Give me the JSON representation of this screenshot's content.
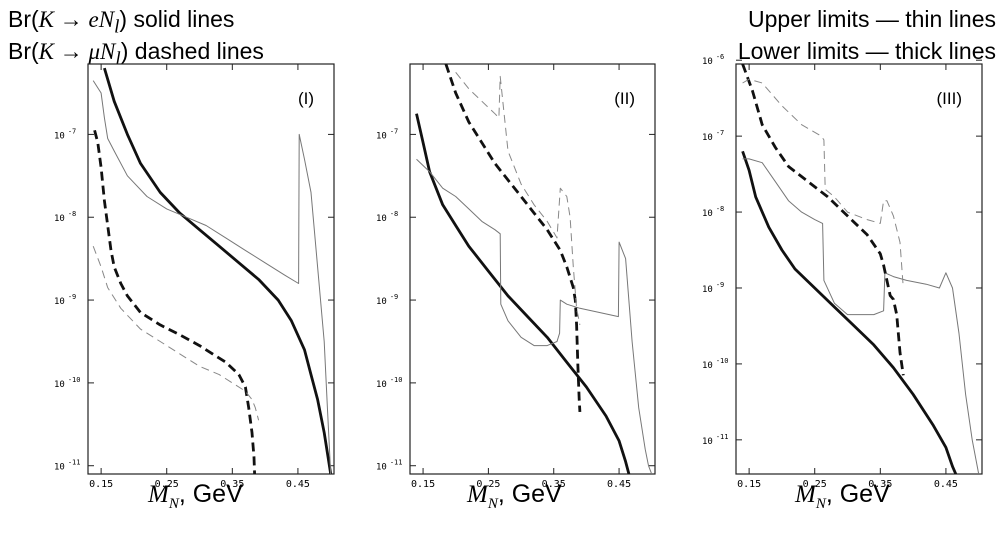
{
  "legend": {
    "left_line1_prefix": "Br(",
    "left_line1_math": "K → eN",
    "left_line1_sub": "l",
    "left_line1_suffix": ") solid lines",
    "left_line2_prefix": "Br(",
    "left_line2_math": "K → μN",
    "left_line2_sub": "l",
    "left_line2_suffix": ") dashed lines",
    "right_line1": "Upper limits — thin lines",
    "right_line2": "Lower limits — thick lines"
  },
  "xlabel": {
    "symbol": "M",
    "sub": "N",
    "unit": ", GeV"
  },
  "chart_data": [
    {
      "type": "line",
      "panel_label": "(I)",
      "xlim": [
        0.13,
        0.505
      ],
      "ylim": [
        -11.1,
        -6.15
      ],
      "yscale": "log",
      "xticks": [
        0.15,
        0.25,
        0.35,
        0.45
      ],
      "xtick_labels": [
        "0.15",
        "0.25",
        "0.35",
        "0.45"
      ],
      "yticks": [
        -7,
        -8,
        -9,
        -10,
        -11
      ],
      "ytick_labels": [
        "10 -7",
        "10 -8",
        "10 -9",
        "10 -10",
        "10 -11"
      ],
      "series": [
        {
          "style": "solid-thick",
          "x": [
            0.155,
            0.17,
            0.19,
            0.21,
            0.24,
            0.27,
            0.3,
            0.33,
            0.36,
            0.39,
            0.42,
            0.44,
            0.46,
            0.47,
            0.48,
            0.49,
            0.496,
            0.5
          ],
          "y": [
            -6.2,
            -6.6,
            -7.0,
            -7.35,
            -7.7,
            -7.95,
            -8.15,
            -8.35,
            -8.55,
            -8.75,
            -9.0,
            -9.25,
            -9.6,
            -9.9,
            -10.2,
            -10.6,
            -10.9,
            -11.1
          ]
        },
        {
          "style": "solid-thin",
          "x": [
            0.138,
            0.15,
            0.155,
            0.16,
            0.17,
            0.19,
            0.22,
            0.25,
            0.28,
            0.31,
            0.34,
            0.37,
            0.4,
            0.43,
            0.451,
            0.452,
            0.46,
            0.47,
            0.48,
            0.49,
            0.495,
            0.5
          ],
          "y": [
            -6.35,
            -6.5,
            -6.8,
            -7.05,
            -7.2,
            -7.5,
            -7.75,
            -7.9,
            -8.0,
            -8.1,
            -8.25,
            -8.4,
            -8.55,
            -8.7,
            -8.8,
            -7.0,
            -7.3,
            -7.7,
            -8.6,
            -9.5,
            -10.3,
            -11.1
          ]
        },
        {
          "style": "dashed-thick",
          "x": [
            0.14,
            0.145,
            0.15,
            0.155,
            0.16,
            0.165,
            0.17,
            0.18,
            0.19,
            0.21,
            0.24,
            0.27,
            0.3,
            0.32,
            0.34,
            0.36,
            0.37,
            0.375,
            0.38,
            0.383,
            0.384
          ],
          "y": [
            -6.95,
            -7.1,
            -7.4,
            -7.8,
            -8.1,
            -8.4,
            -8.6,
            -8.8,
            -8.95,
            -9.15,
            -9.3,
            -9.42,
            -9.55,
            -9.65,
            -9.75,
            -9.9,
            -10.05,
            -10.3,
            -10.6,
            -10.9,
            -11.1
          ]
        },
        {
          "style": "dashed-thin",
          "x": [
            0.138,
            0.15,
            0.16,
            0.18,
            0.21,
            0.24,
            0.27,
            0.3,
            0.33,
            0.35,
            0.37,
            0.38,
            0.385,
            0.39
          ],
          "y": [
            -8.35,
            -8.6,
            -8.85,
            -9.1,
            -9.35,
            -9.5,
            -9.65,
            -9.8,
            -9.9,
            -10.0,
            -10.1,
            -10.2,
            -10.3,
            -10.45
          ]
        }
      ]
    },
    {
      "type": "line",
      "panel_label": "(II)",
      "xlim": [
        0.13,
        0.505
      ],
      "ylim": [
        -11.1,
        -6.15
      ],
      "yscale": "log",
      "xticks": [
        0.15,
        0.25,
        0.35,
        0.45
      ],
      "xtick_labels": [
        "0.15",
        "0.25",
        "0.35",
        "0.45"
      ],
      "yticks": [
        -7,
        -8,
        -9,
        -10,
        -11
      ],
      "ytick_labels": [
        "10 -7",
        "10 -8",
        "10 -9",
        "10 -10",
        "10 -11"
      ],
      "series": [
        {
          "style": "solid-thick",
          "x": [
            0.14,
            0.15,
            0.16,
            0.18,
            0.2,
            0.22,
            0.25,
            0.28,
            0.31,
            0.34,
            0.37,
            0.4,
            0.43,
            0.45,
            0.46,
            0.465
          ],
          "y": [
            -6.75,
            -7.1,
            -7.45,
            -7.85,
            -8.1,
            -8.35,
            -8.65,
            -8.95,
            -9.2,
            -9.45,
            -9.75,
            -10.05,
            -10.4,
            -10.7,
            -10.95,
            -11.1
          ]
        },
        {
          "style": "solid-thin",
          "x": [
            0.14,
            0.16,
            0.18,
            0.2,
            0.22,
            0.24,
            0.26,
            0.268,
            0.269,
            0.28,
            0.3,
            0.32,
            0.34,
            0.355,
            0.359,
            0.36,
            0.37,
            0.39,
            0.42,
            0.449,
            0.45,
            0.46,
            0.47,
            0.48,
            0.49,
            0.495,
            0.5
          ],
          "y": [
            -7.3,
            -7.45,
            -7.65,
            -7.75,
            -7.9,
            -8.05,
            -8.15,
            -8.2,
            -9.05,
            -9.25,
            -9.45,
            -9.55,
            -9.55,
            -9.5,
            -9.4,
            -9.0,
            -9.05,
            -9.1,
            -9.15,
            -9.2,
            -8.3,
            -8.5,
            -9.5,
            -10.3,
            -10.8,
            -11.0,
            -11.1
          ]
        },
        {
          "style": "dashed-thick",
          "x": [
            0.185,
            0.2,
            0.22,
            0.24,
            0.26,
            0.28,
            0.3,
            0.32,
            0.34,
            0.36,
            0.37,
            0.38,
            0.383,
            0.385,
            0.387,
            0.389,
            0.39
          ],
          "y": [
            -6.15,
            -6.5,
            -6.85,
            -7.1,
            -7.35,
            -7.55,
            -7.75,
            -7.95,
            -8.15,
            -8.4,
            -8.6,
            -8.85,
            -9.0,
            -9.3,
            -9.8,
            -10.2,
            -10.35
          ]
        },
        {
          "style": "dashed-thin",
          "x": [
            0.2,
            0.22,
            0.24,
            0.26,
            0.266,
            0.268,
            0.27,
            0.28,
            0.3,
            0.32,
            0.34,
            0.355,
            0.36,
            0.37,
            0.375,
            0.38,
            0.385,
            0.39
          ],
          "y": [
            -6.25,
            -6.45,
            -6.6,
            -6.75,
            -6.8,
            -6.3,
            -6.45,
            -7.2,
            -7.6,
            -7.85,
            -8.05,
            -8.25,
            -7.65,
            -7.75,
            -8.0,
            -8.6,
            -9.1,
            -9.3
          ]
        }
      ]
    },
    {
      "type": "line",
      "panel_label": "(III)",
      "xlim": [
        0.13,
        0.505
      ],
      "ylim": [
        -11.45,
        -6.05
      ],
      "yscale": "log",
      "xticks": [
        0.15,
        0.25,
        0.35,
        0.45
      ],
      "xtick_labels": [
        "0.15",
        "0.25",
        "0.35",
        "0.45"
      ],
      "yticks": [
        -6,
        -7,
        -8,
        -9,
        -10,
        -11
      ],
      "ytick_labels": [
        "10 -6",
        "10 -7",
        "10 -8",
        "10 -9",
        "10 -10",
        "10 -11"
      ],
      "series": [
        {
          "style": "solid-thick",
          "x": [
            0.14,
            0.15,
            0.16,
            0.18,
            0.2,
            0.22,
            0.25,
            0.28,
            0.31,
            0.34,
            0.37,
            0.4,
            0.43,
            0.45,
            0.46,
            0.465
          ],
          "y": [
            -7.2,
            -7.45,
            -7.8,
            -8.2,
            -8.5,
            -8.75,
            -9.0,
            -9.25,
            -9.5,
            -9.75,
            -10.05,
            -10.4,
            -10.8,
            -11.1,
            -11.35,
            -11.45
          ]
        },
        {
          "style": "solid-thin",
          "x": [
            0.14,
            0.15,
            0.17,
            0.19,
            0.21,
            0.23,
            0.25,
            0.262,
            0.264,
            0.28,
            0.3,
            0.32,
            0.34,
            0.355,
            0.357,
            0.37,
            0.39,
            0.42,
            0.44,
            0.45,
            0.46,
            0.47,
            0.48,
            0.49,
            0.5
          ],
          "y": [
            -7.3,
            -7.3,
            -7.35,
            -7.6,
            -7.85,
            -8.0,
            -8.1,
            -8.15,
            -8.9,
            -9.2,
            -9.35,
            -9.35,
            -9.35,
            -9.3,
            -8.8,
            -8.85,
            -8.9,
            -8.95,
            -9.0,
            -8.8,
            -9.0,
            -9.6,
            -10.4,
            -11.0,
            -11.45
          ]
        },
        {
          "style": "dashed-thick",
          "x": [
            0.14,
            0.155,
            0.17,
            0.19,
            0.21,
            0.24,
            0.27,
            0.3,
            0.33,
            0.35,
            0.355,
            0.36,
            0.365,
            0.37,
            0.375,
            0.38,
            0.385
          ],
          "y": [
            -6.05,
            -6.4,
            -6.85,
            -7.15,
            -7.4,
            -7.6,
            -7.8,
            -8.05,
            -8.3,
            -8.55,
            -8.7,
            -8.9,
            -9.1,
            -9.15,
            -9.35,
            -9.85,
            -10.15
          ]
        },
        {
          "style": "dashed-thin",
          "x": [
            0.14,
            0.15,
            0.17,
            0.2,
            0.23,
            0.26,
            0.264,
            0.266,
            0.28,
            0.3,
            0.33,
            0.35,
            0.355,
            0.36,
            0.37,
            0.38,
            0.385
          ],
          "y": [
            -6.3,
            -6.25,
            -6.3,
            -6.6,
            -6.85,
            -7.0,
            -7.05,
            -7.7,
            -7.8,
            -8.0,
            -8.1,
            -8.15,
            -7.85,
            -7.85,
            -8.05,
            -8.4,
            -9.0
          ]
        }
      ]
    }
  ]
}
